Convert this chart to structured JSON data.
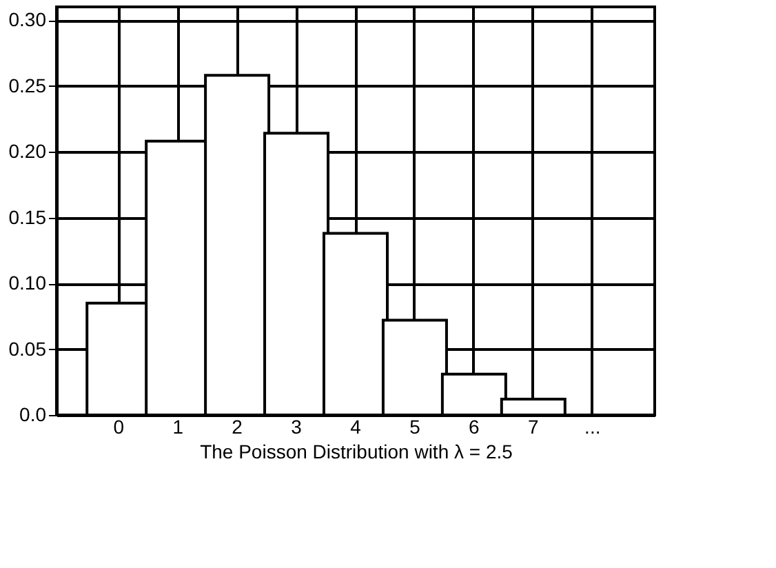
{
  "chart_data": {
    "type": "bar",
    "xlabel": "The Poisson Distribution with λ = 2.5",
    "categories": [
      "0",
      "1",
      "2",
      "3",
      "4",
      "5",
      "6",
      "7",
      "..."
    ],
    "values": [
      0.085,
      0.208,
      0.258,
      0.214,
      0.138,
      0.072,
      0.031,
      0.012,
      null
    ],
    "color": "#ffffff",
    "ylim": [
      0,
      0.31
    ],
    "yticks": [
      {
        "value": 0,
        "label": "0.0"
      },
      {
        "value": 0.05,
        "label": "0.05"
      },
      {
        "value": 0.1,
        "label": "0.10"
      },
      {
        "value": 0.15,
        "label": "0.15"
      },
      {
        "value": 0.2,
        "label": "0.20"
      },
      {
        "value": 0.25,
        "label": "0.25"
      },
      {
        "value": 0.3,
        "label": "0.30"
      }
    ],
    "grid": true
  }
}
